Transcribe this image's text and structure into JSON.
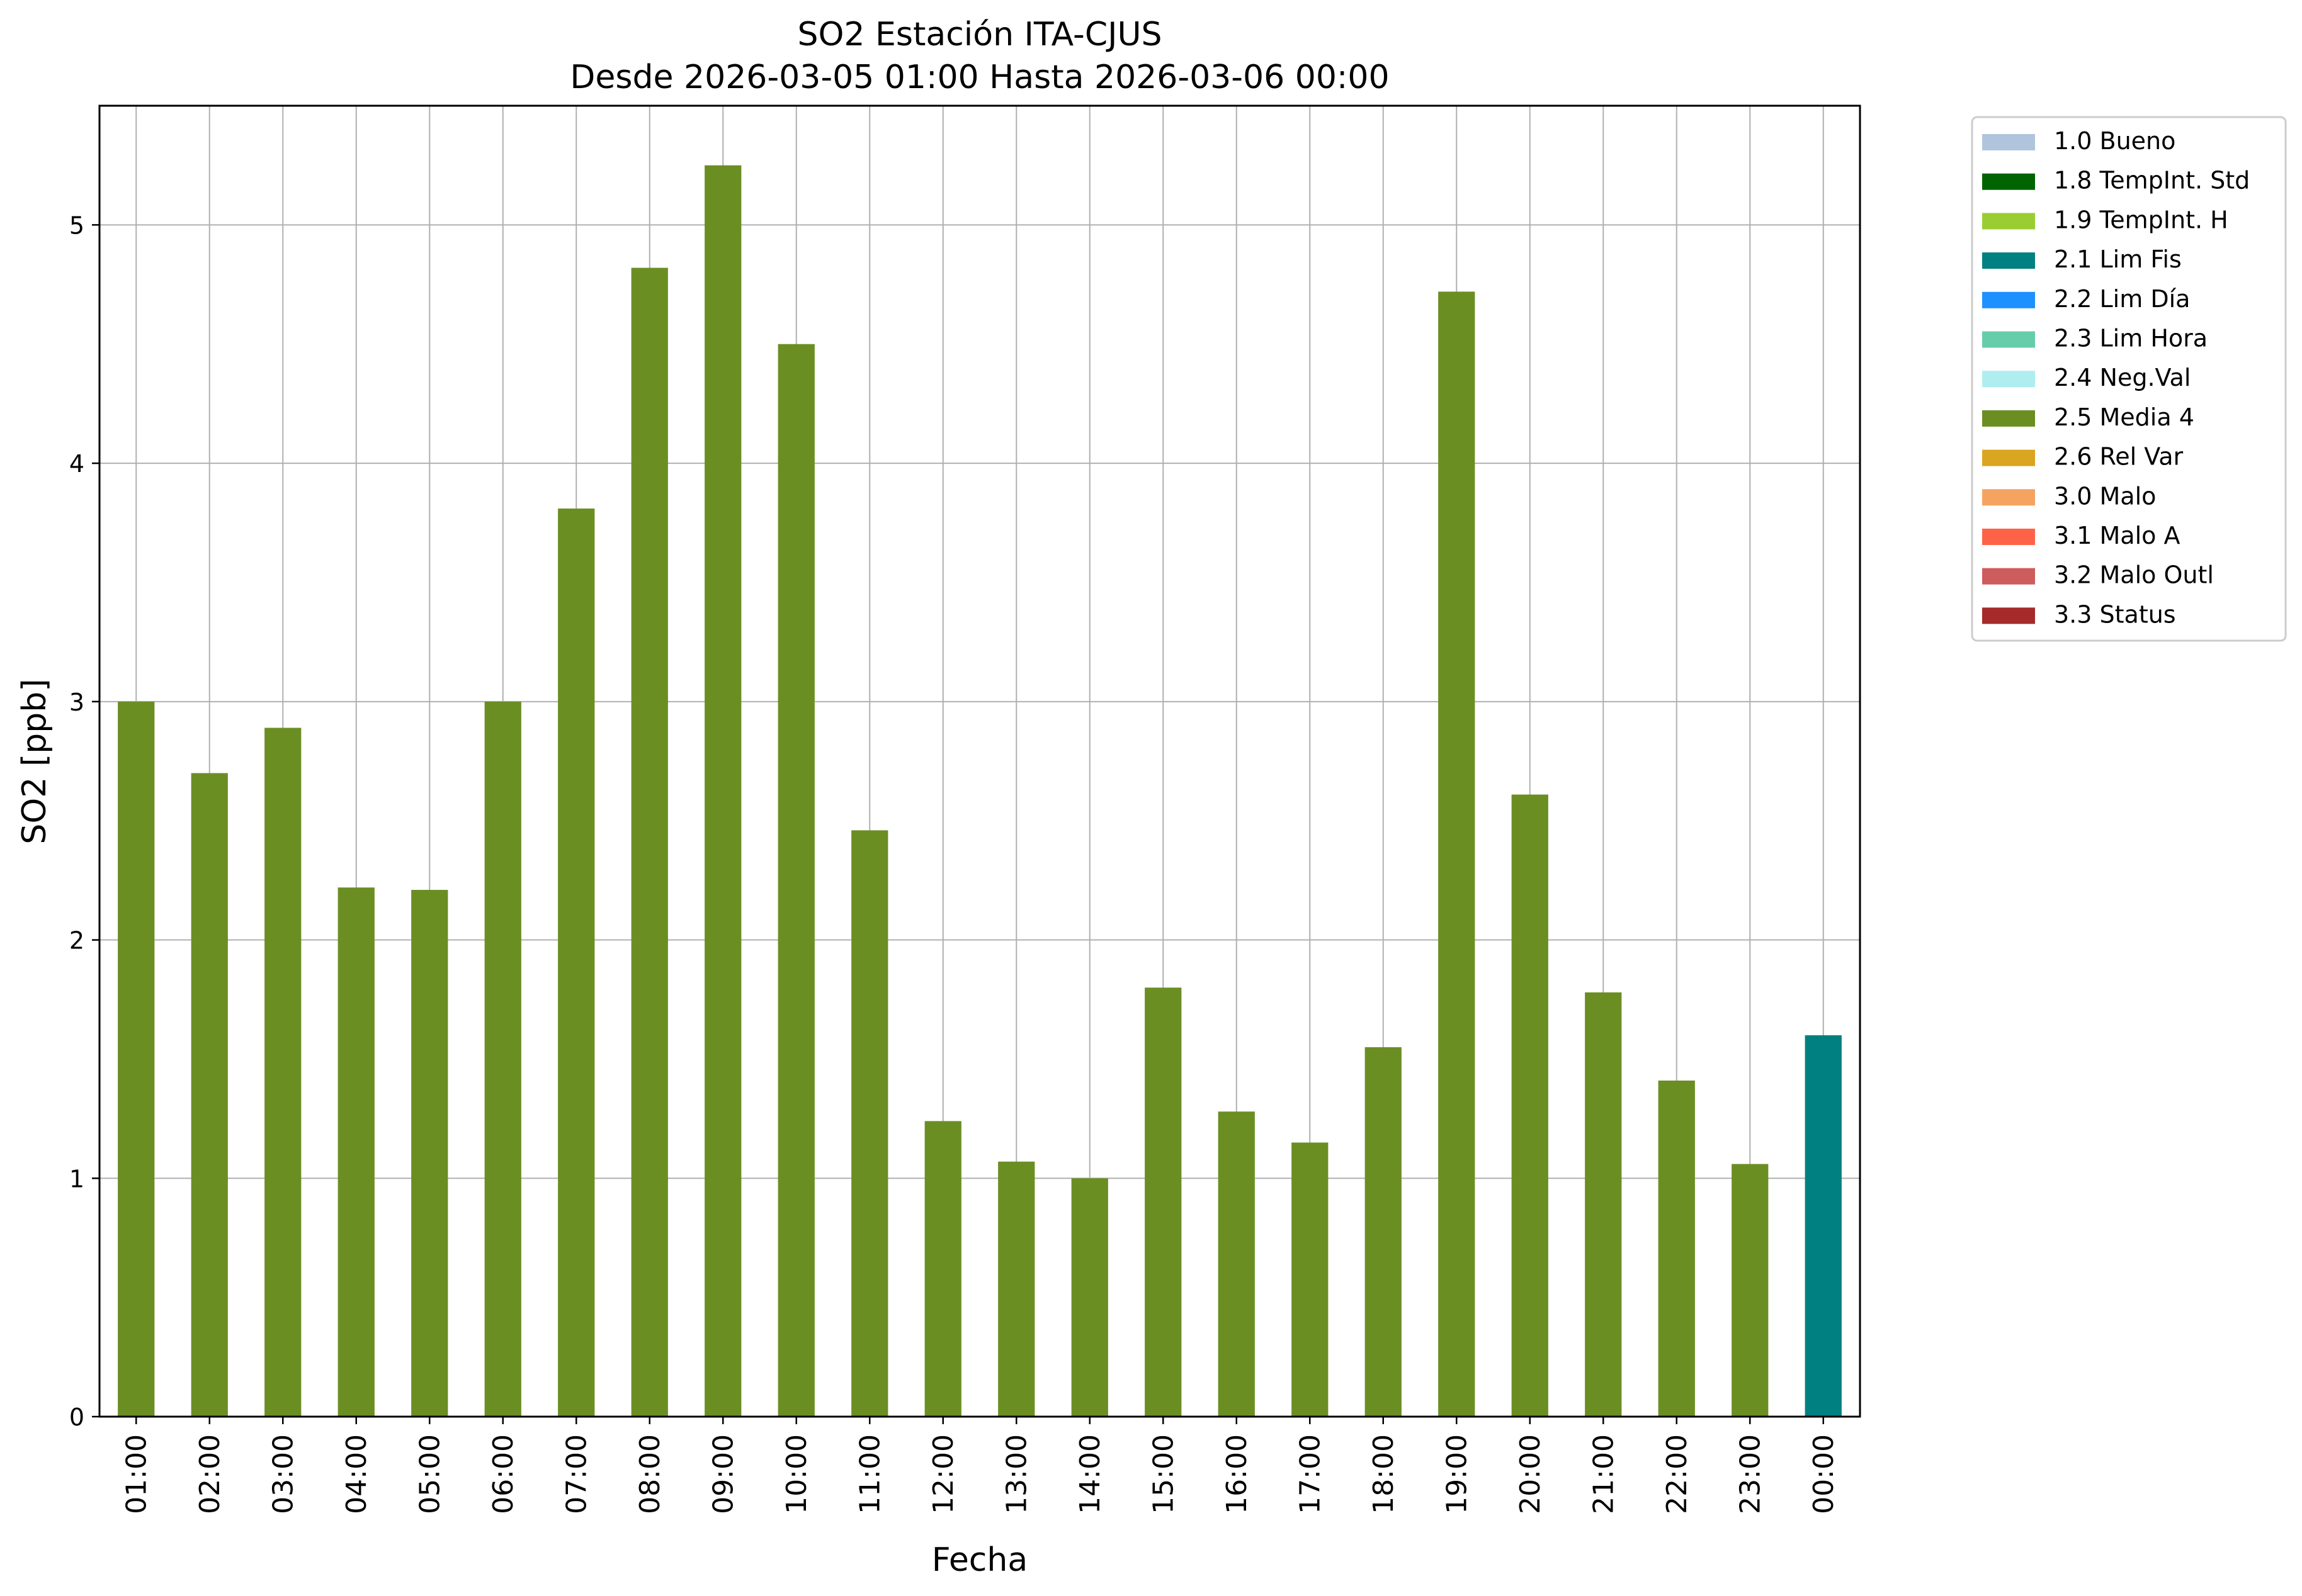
{
  "chart_data": {
    "type": "bar",
    "title": "SO2 Estación ITA-CJUS",
    "subtitle": "Desde 2026-03-05 01:00 Hasta 2026-03-06 00:00",
    "xlabel": "Fecha",
    "ylabel": "SO2 [ppb]",
    "ylim": [
      0,
      5.5
    ],
    "yticks": [
      "0",
      "1",
      "2",
      "3",
      "4",
      "5"
    ],
    "grid": true,
    "legend_position": "outside-top-right",
    "categories": [
      "01:00",
      "02:00",
      "03:00",
      "04:00",
      "05:00",
      "06:00",
      "07:00",
      "08:00",
      "09:00",
      "10:00",
      "11:00",
      "12:00",
      "13:00",
      "14:00",
      "15:00",
      "16:00",
      "17:00",
      "18:00",
      "19:00",
      "20:00",
      "21:00",
      "22:00",
      "23:00",
      "00:00"
    ],
    "values": [
      3.0,
      2.7,
      2.89,
      2.22,
      2.21,
      3.0,
      3.81,
      4.82,
      5.25,
      4.5,
      2.46,
      1.24,
      1.07,
      1.0,
      1.8,
      1.28,
      1.15,
      1.55,
      4.72,
      2.61,
      1.78,
      1.41,
      1.06,
      1.6
    ],
    "flags": [
      "2.5 Media 4",
      "2.5 Media 4",
      "2.5 Media 4",
      "2.5 Media 4",
      "2.5 Media 4",
      "2.5 Media 4",
      "2.5 Media 4",
      "2.5 Media 4",
      "2.5 Media 4",
      "2.5 Media 4",
      "2.5 Media 4",
      "2.5 Media 4",
      "2.5 Media 4",
      "2.5 Media 4",
      "2.5 Media 4",
      "2.5 Media 4",
      "2.5 Media 4",
      "2.5 Media 4",
      "2.5 Media 4",
      "2.5 Media 4",
      "2.5 Media 4",
      "2.5 Media 4",
      "2.5 Media 4",
      "2.1 Lim Fis"
    ],
    "legend": [
      {
        "label": "1.0 Bueno",
        "color": "#b0c4de"
      },
      {
        "label": "1.8 TempInt. Std",
        "color": "#006400"
      },
      {
        "label": "1.9 TempInt. H",
        "color": "#9acd32"
      },
      {
        "label": "2.1 Lim Fis",
        "color": "#008080"
      },
      {
        "label": "2.2 Lim Día",
        "color": "#1e90ff"
      },
      {
        "label": "2.3 Lim Hora",
        "color": "#66cdaa"
      },
      {
        "label": "2.4 Neg.Val",
        "color": "#afeeee"
      },
      {
        "label": "2.5 Media 4",
        "color": "#6b8e23"
      },
      {
        "label": "2.6 Rel Var",
        "color": "#daa520"
      },
      {
        "label": "3.0 Malo",
        "color": "#f4a460"
      },
      {
        "label": "3.1 Malo A",
        "color": "#ff6347"
      },
      {
        "label": "3.2 Malo Outl",
        "color": "#cd5c5c"
      },
      {
        "label": "3.3 Status",
        "color": "#a52a2a"
      }
    ]
  }
}
